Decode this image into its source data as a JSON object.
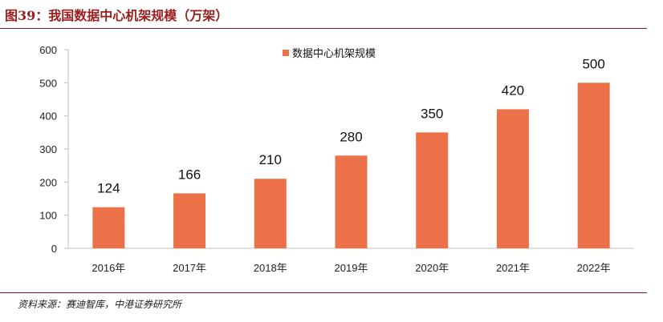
{
  "figure_title": "图39：我国数据中心机架规模（万架）",
  "source_note": "资料来源：赛迪智库，中港证券研究所",
  "colors": {
    "bar": "#ED7148",
    "title": "#9C1C1C",
    "rule": "#8B1A1A",
    "axis": "#BFBFBF"
  },
  "chart_data": {
    "type": "bar",
    "categories": [
      "2016年",
      "2017年",
      "2018年",
      "2019年",
      "2020年",
      "2021年",
      "2022年"
    ],
    "series": [
      {
        "name": "数据中心机架规模",
        "values": [
          124,
          166,
          210,
          280,
          350,
          420,
          500
        ]
      }
    ],
    "data_labels": [
      "124",
      "166",
      "210",
      "280",
      "350",
      "420",
      "500"
    ],
    "y_ticks": [
      "0",
      "100",
      "200",
      "300",
      "400",
      "500",
      "600"
    ],
    "ylim": [
      0,
      600
    ],
    "grid": false,
    "legend_position": "top-center"
  }
}
